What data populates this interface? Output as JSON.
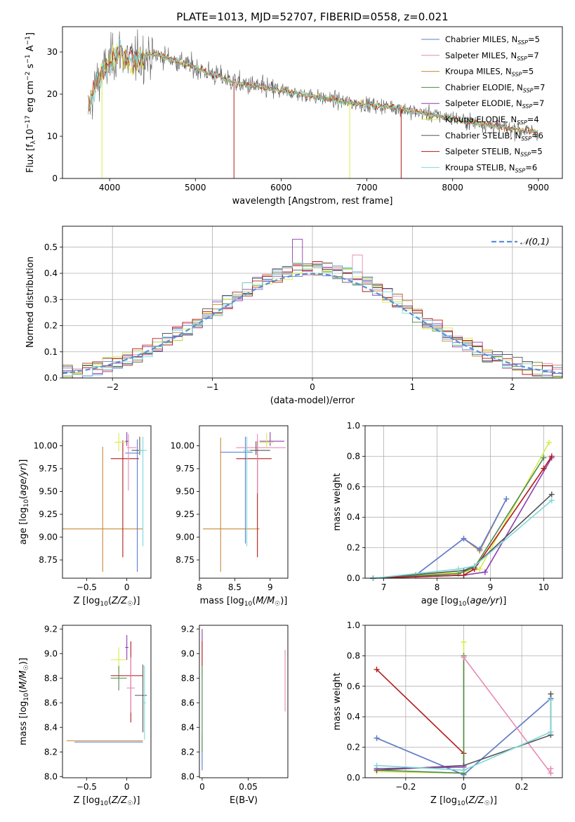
{
  "title": "PLATE=1013, MJD=52707, FIBERID=0558, z=0.021",
  "colors": {
    "chabrier_miles": "#5b7fd6",
    "salpeter_miles": "#e68cb4",
    "kroupa_miles": "#c8883a",
    "chabrier_elodie": "#4f8a4f",
    "salpeter_elodie": "#8e3db0",
    "kroupa_elodie": "#d6ec4a",
    "chabrier_stelib": "#555555",
    "salpeter_stelib": "#b31b1b",
    "kroupa_stelib": "#7dd8d8",
    "gaussian": "#5b8fd6",
    "grid": "#b0b0b0"
  },
  "chart_data": [
    {
      "id": "spectrum",
      "type": "line",
      "xlabel": "wavelength [Angstrom, rest frame]",
      "ylabel": "Flux [f_λ 10^-17 erg cm^-2 s^-1 A^-1]",
      "xlim": [
        3450,
        9280
      ],
      "ylim": [
        0,
        36
      ],
      "xticks": [
        4000,
        5000,
        6000,
        7000,
        8000,
        9000
      ],
      "yticks": [
        0,
        10,
        20,
        30
      ],
      "grid": false,
      "legend_position": "top-right",
      "legend": [
        {
          "key": "chabrier_miles",
          "label": "Chabrier MILES, N",
          "sub": "SSP",
          "post": "=5"
        },
        {
          "key": "salpeter_miles",
          "label": "Salpeter MILES, N",
          "sub": "SSP",
          "post": "=7"
        },
        {
          "key": "kroupa_miles",
          "label": "Kroupa MILES, N",
          "sub": "SSP",
          "post": "=5"
        },
        {
          "key": "chabrier_elodie",
          "label": "Chabrier ELODIE, N",
          "sub": "SSP",
          "post": "=7"
        },
        {
          "key": "salpeter_elodie",
          "label": "Salpeter ELODIE, N",
          "sub": "SSP",
          "post": "=7"
        },
        {
          "key": "kroupa_elodie",
          "label": "Kroupa ELODIE, N",
          "sub": "SSP",
          "post": "=4"
        },
        {
          "key": "chabrier_stelib",
          "label": "Chabrier STELIB, N",
          "sub": "SSP",
          "post": "=6"
        },
        {
          "key": "salpeter_stelib",
          "label": "Salpeter STELIB, N",
          "sub": "SSP",
          "post": "=5"
        },
        {
          "key": "kroupa_stelib",
          "label": "Kroupa STELIB, N",
          "sub": "SSP",
          "post": "=6"
        }
      ],
      "continuum": [
        [
          3750,
          16
        ],
        [
          3850,
          23
        ],
        [
          3950,
          26
        ],
        [
          4000,
          27.5
        ],
        [
          4100,
          30
        ],
        [
          4200,
          28.5
        ],
        [
          4300,
          28
        ],
        [
          4400,
          29
        ],
        [
          4500,
          29.5
        ],
        [
          4700,
          28.5
        ],
        [
          4900,
          27
        ],
        [
          5100,
          25.5
        ],
        [
          5300,
          24
        ],
        [
          5500,
          22.5
        ],
        [
          5800,
          21.5
        ],
        [
          6100,
          20.5
        ],
        [
          6500,
          19
        ],
        [
          6800,
          18
        ],
        [
          7000,
          17.5
        ],
        [
          7300,
          17
        ],
        [
          7500,
          16
        ],
        [
          7800,
          15
        ],
        [
          8200,
          13.5
        ],
        [
          8600,
          12
        ],
        [
          9000,
          11
        ]
      ],
      "dips": [
        [
          3910,
          0,
          "kroupa_elodie"
        ],
        [
          5450,
          0,
          "salpeter_stelib"
        ],
        [
          6800,
          0,
          "kroupa_elodie"
        ],
        [
          7400,
          0,
          "salpeter_stelib"
        ]
      ]
    },
    {
      "id": "residuals",
      "type": "histogram",
      "xlabel": "(data-model)/error",
      "ylabel": "Normed distribution",
      "xlim": [
        -2.5,
        2.5
      ],
      "ylim": [
        0,
        0.58
      ],
      "xticks": [
        -2,
        -1,
        0,
        1,
        2
      ],
      "yticks": [
        0.0,
        0.1,
        0.2,
        0.3,
        0.4,
        0.5
      ],
      "grid": true,
      "legend_position": "top-right",
      "gaussian_label": "N(0,1)",
      "bin_width": 0.1
    },
    {
      "id": "age_vs_z",
      "type": "errorbar",
      "xlabel": "Z [log10(Z/Z☉)]",
      "ylabel": "age [log10(age/yr)]",
      "xlim": [
        -0.8,
        0.3
      ],
      "ylim": [
        8.55,
        10.22
      ],
      "xticks": [
        -0.5,
        0.0
      ],
      "yticks": [
        8.75,
        9.0,
        9.25,
        9.5,
        9.75,
        10.0
      ],
      "points": [
        {
          "s": "kroupa_miles",
          "x": -0.3,
          "xe": [
            0.5,
            0.5
          ],
          "y": 9.09,
          "ye": [
            0.47,
            0.9
          ]
        },
        {
          "s": "chabrier_miles",
          "x": 0.13,
          "xe": [
            0.15,
            0.02
          ],
          "y": 9.92,
          "ye": [
            1.3,
            0.15
          ]
        },
        {
          "s": "salpeter_stelib",
          "x": -0.05,
          "xe": [
            0.15,
            0.2
          ],
          "y": 9.86,
          "ye": [
            1.08,
            0.2
          ]
        },
        {
          "s": "kroupa_elodie",
          "x": -0.1,
          "xe": [
            0.05,
            0.1
          ],
          "y": 10.04,
          "ye": [
            0.1,
            0.1
          ]
        },
        {
          "s": "salpeter_miles",
          "x": 0.02,
          "xe": [
            0.02,
            0.1
          ],
          "y": 9.98,
          "ye": [
            0.47,
            0.15
          ]
        },
        {
          "s": "chabrier_stelib",
          "x": 0.16,
          "xe": [
            0.1,
            0.05
          ],
          "y": 9.95,
          "ye": [
            0.05,
            0.15
          ]
        },
        {
          "s": "salpeter_elodie",
          "x": 0.0,
          "xe": [
            0.02,
            0.02
          ],
          "y": 10.05,
          "ye": [
            0.05,
            0.1
          ]
        },
        {
          "s": "kroupa_stelib",
          "x": 0.2,
          "xe": [
            0.05,
            0.05
          ],
          "y": 9.95,
          "ye": [
            1.05,
            0.15
          ]
        }
      ]
    },
    {
      "id": "age_vs_mass",
      "type": "errorbar",
      "xlabel": "mass [log10(M/M☉)]",
      "ylabel": "",
      "xlim": [
        8.0,
        9.25
      ],
      "ylim": [
        8.55,
        10.22
      ],
      "xticks": [
        8.0,
        8.5,
        9.0
      ],
      "yticks": [
        8.75,
        9.0,
        9.25,
        9.5,
        9.75,
        10.0
      ],
      "points": [
        {
          "s": "kroupa_miles",
          "x": 8.3,
          "xe": [
            0.25,
            0.55
          ],
          "y": 9.09,
          "ye": [
            0.47,
            1.0
          ]
        },
        {
          "s": "chabrier_miles",
          "x": 8.65,
          "xe": [
            0.35,
            0.1
          ],
          "y": 9.93,
          "ye": [
            1.0,
            0.17
          ]
        },
        {
          "s": "salpeter_stelib",
          "x": 8.82,
          "xe": [
            0.3,
            0.2
          ],
          "y": 9.86,
          "ye": [
            1.08,
            0.2
          ]
        },
        {
          "s": "salpeter_miles",
          "x": 8.82,
          "xe": [
            0.3,
            0.4
          ],
          "y": 9.98,
          "ye": [
            0.5,
            0.15
          ]
        },
        {
          "s": "salpeter_elodie",
          "x": 9.0,
          "xe": [
            0.15,
            0.2
          ],
          "y": 10.05,
          "ye": [
            0.05,
            0.1
          ]
        },
        {
          "s": "kroupa_elodie",
          "x": 8.95,
          "xe": [
            0.1,
            0.1
          ],
          "y": 10.04,
          "ye": [
            0.05,
            0.1
          ]
        },
        {
          "s": "chabrier_stelib",
          "x": 8.8,
          "xe": [
            0.1,
            0.2
          ],
          "y": 9.95,
          "ye": [
            0.05,
            0.1
          ]
        },
        {
          "s": "kroupa_stelib",
          "x": 8.67,
          "xe": [
            0.05,
            0.05
          ],
          "y": 9.95,
          "ye": [
            1.05,
            0.15
          ]
        }
      ]
    },
    {
      "id": "weight_vs_age",
      "type": "line",
      "xlabel": "age [log10(age/yr)]",
      "ylabel": "mass weight",
      "xlim": [
        6.65,
        10.35
      ],
      "ylim": [
        0,
        1.0
      ],
      "xticks": [
        7,
        8,
        9,
        10
      ],
      "yticks": [
        0.0,
        0.2,
        0.4,
        0.6,
        0.8,
        1.0
      ],
      "grid": true,
      "series": [
        {
          "s": "kroupa_miles",
          "x": [
            6.8,
            7.6,
            8.5,
            8.8,
            9.3
          ],
          "y": [
            0.0,
            0.02,
            0.26,
            0.18,
            0.52
          ]
        },
        {
          "s": "chabrier_miles",
          "x": [
            6.8,
            7.6,
            8.5,
            8.8,
            9.3
          ],
          "y": [
            0.0,
            0.02,
            0.26,
            0.19,
            0.52
          ]
        },
        {
          "s": "kroupa_elodie",
          "x": [
            6.8,
            8.5,
            8.8,
            10.1
          ],
          "y": [
            0.0,
            0.04,
            0.06,
            0.89
          ]
        },
        {
          "s": "chabrier_elodie",
          "x": [
            6.8,
            8.4,
            8.7,
            10.0
          ],
          "y": [
            0.0,
            0.03,
            0.07,
            0.79
          ]
        },
        {
          "s": "salpeter_elodie",
          "x": [
            6.8,
            8.5,
            8.9,
            10.15
          ],
          "y": [
            0.0,
            0.02,
            0.04,
            0.79
          ]
        },
        {
          "s": "salpeter_stelib",
          "x": [
            6.8,
            8.5,
            8.7,
            10.0,
            10.15
          ],
          "y": [
            0.0,
            0.02,
            0.06,
            0.72,
            0.8
          ]
        },
        {
          "s": "chabrier_stelib",
          "x": [
            6.8,
            8.5,
            8.7,
            10.15
          ],
          "y": [
            0.0,
            0.05,
            0.08,
            0.55
          ]
        },
        {
          "s": "kroupa_stelib",
          "x": [
            6.8,
            8.4,
            8.7,
            10.15
          ],
          "y": [
            0.0,
            0.06,
            0.08,
            0.51
          ]
        }
      ]
    },
    {
      "id": "mass_vs_z",
      "type": "errorbar",
      "xlabel": "Z [log10(Z/Z☉)]",
      "ylabel": "mass [log10(M/M☉)]",
      "xlim": [
        -0.8,
        0.3
      ],
      "ylim": [
        7.99,
        9.23
      ],
      "xticks": [
        -0.5,
        0.0
      ],
      "yticks": [
        8.0,
        8.2,
        8.4,
        8.6,
        8.8,
        9.0,
        9.2
      ],
      "points": [
        {
          "s": "kroupa_miles",
          "x": -0.3,
          "xe": [
            0.45,
            0.5
          ],
          "y": 8.29,
          "ye": [
            0.0,
            0.0
          ]
        },
        {
          "s": "chabrier_miles",
          "x": -0.1,
          "xe": [
            0.55,
            0.3
          ],
          "y": 8.28,
          "ye": [
            0.0,
            0.0
          ]
        },
        {
          "s": "salpeter_stelib",
          "x": 0.05,
          "xe": [
            0.25,
            0.15
          ],
          "y": 8.82,
          "ye": [
            0.38,
            0.28
          ]
        },
        {
          "s": "kroupa_elodie",
          "x": -0.1,
          "xe": [
            0.1,
            0.1
          ],
          "y": 8.95,
          "ye": [
            0.1,
            0.1
          ]
        },
        {
          "s": "salpeter_miles",
          "x": 0.05,
          "xe": [
            0.05,
            0.05
          ],
          "y": 8.72,
          "ye": [
            0.2,
            0.25
          ]
        },
        {
          "s": "chabrier_elodie",
          "x": -0.1,
          "xe": [
            0.1,
            0.1
          ],
          "y": 8.8,
          "ye": [
            0.1,
            0.1
          ]
        },
        {
          "s": "salpeter_elodie",
          "x": 0.0,
          "xe": [
            0.02,
            0.02
          ],
          "y": 9.05,
          "ye": [
            0.1,
            0.1
          ]
        },
        {
          "s": "chabrier_stelib",
          "x": 0.2,
          "xe": [
            0.1,
            0.05
          ],
          "y": 8.66,
          "ye": [
            0.3,
            0.25
          ]
        },
        {
          "s": "kroupa_stelib",
          "x": 0.22,
          "xe": [
            0.02,
            0.02
          ],
          "y": 8.6,
          "ye": [
            0.3,
            0.3
          ]
        }
      ]
    },
    {
      "id": "mass_vs_ebv",
      "type": "errorbar",
      "xlabel": "E(B-V)",
      "ylabel": "",
      "xlim": [
        -0.003,
        0.093
      ],
      "ylim": [
        7.99,
        9.23
      ],
      "xticks": [
        0.0,
        0.05
      ],
      "yticks": [
        8.0,
        8.2,
        8.4,
        8.6,
        8.8,
        9.0,
        9.2
      ],
      "points": [
        {
          "s": "salpeter_elodie",
          "x": 0.0,
          "xe": [
            0,
            0
          ],
          "y": 9.0,
          "ye": [
            0.2,
            0.2
          ]
        },
        {
          "s": "salpeter_stelib",
          "x": 0.0,
          "xe": [
            0,
            0
          ],
          "y": 9.0,
          "ye": [
            0.1,
            0.1
          ]
        },
        {
          "s": "kroupa_miles",
          "x": 0.0,
          "xe": [
            0,
            0
          ],
          "y": 8.2,
          "ye": [
            0.1,
            0.1
          ]
        },
        {
          "s": "chabrier_miles",
          "x": 0.0,
          "xe": [
            0,
            0
          ],
          "y": 8.2,
          "ye": [
            0.15,
            0.15
          ]
        },
        {
          "s": "kroupa_stelib",
          "x": 0.0,
          "xe": [
            0,
            0
          ],
          "y": 8.6,
          "ye": [
            0.3,
            0.3
          ]
        },
        {
          "s": "chabrier_elodie",
          "x": 0.0,
          "xe": [
            0,
            0
          ],
          "y": 8.55,
          "ye": [
            0.35,
            0.35
          ]
        },
        {
          "s": "salpeter_miles",
          "x": 0.09,
          "xe": [
            0,
            0
          ],
          "y": 8.78,
          "ye": [
            0.25,
            0.25
          ]
        }
      ]
    },
    {
      "id": "weight_vs_z",
      "type": "line",
      "xlabel": "Z [log10(Z/Z☉)]",
      "ylabel": "mass weight",
      "xlim": [
        -0.34,
        0.34
      ],
      "ylim": [
        0,
        1.0
      ],
      "xticks": [
        -0.2,
        0.0,
        0.2
      ],
      "yticks": [
        0.0,
        0.2,
        0.4,
        0.6,
        0.8,
        1.0
      ],
      "grid": true,
      "series": [
        {
          "s": "salpeter_stelib",
          "x": [
            -0.3,
            0.0,
            0.0
          ],
          "y": [
            0.71,
            0.16,
            0.02
          ]
        },
        {
          "s": "kroupa_miles",
          "x": [
            -0.3,
            0.0,
            0.3
          ],
          "y": [
            0.26,
            0.02,
            0.52
          ]
        },
        {
          "s": "chabrier_miles",
          "x": [
            -0.3,
            0.0,
            0.3
          ],
          "y": [
            0.26,
            0.02,
            0.52
          ]
        },
        {
          "s": "kroupa_elodie",
          "x": [
            -0.3,
            0.0,
            0.0
          ],
          "y": [
            0.04,
            0.03,
            0.89
          ]
        },
        {
          "s": "chabrier_elodie",
          "x": [
            -0.3,
            0.0,
            0.0
          ],
          "y": [
            0.05,
            0.03,
            0.8
          ]
        },
        {
          "s": "salpeter_miles",
          "x": [
            0.0,
            0.3,
            0.3
          ],
          "y": [
            0.79,
            0.03,
            0.06
          ]
        },
        {
          "s": "chabrier_stelib",
          "x": [
            -0.3,
            0.0,
            0.3,
            0.3
          ],
          "y": [
            0.05,
            0.08,
            0.28,
            0.55
          ]
        },
        {
          "s": "salpeter_elodie",
          "x": [
            -0.3,
            0.0
          ],
          "y": [
            0.06,
            0.07
          ]
        },
        {
          "s": "kroupa_stelib",
          "x": [
            -0.3,
            0.0,
            0.3,
            0.3
          ],
          "y": [
            0.08,
            0.05,
            0.3,
            0.51
          ]
        }
      ]
    }
  ]
}
